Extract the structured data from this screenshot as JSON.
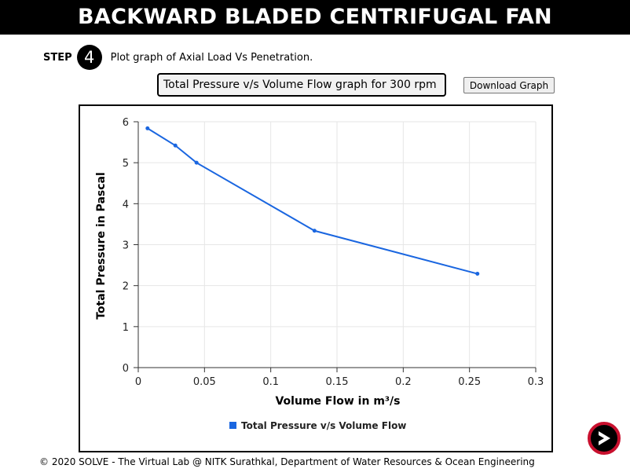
{
  "header": {
    "title": "BACKWARD BLADED CENTRIFUGAL FAN"
  },
  "step": {
    "label": "STEP",
    "number": "4",
    "instruction": "Plot graph of Axial Load Vs Penetration."
  },
  "graph_select": {
    "value": "Total Pressure v/s Volume Flow graph for 300 rpm"
  },
  "download": {
    "label": "Download Graph"
  },
  "footer": {
    "text": "© 2020 SOLVE - The Virtual Lab @ NITK Surathkal, Department of Water Resources & Ocean Engineering"
  },
  "colors": {
    "series": "#1a66e0",
    "legend_marker": "#1a66e0",
    "next_ring": "#c8102e"
  },
  "icons": {
    "next": "chevron-right-icon"
  },
  "chart_data": {
    "type": "line",
    "title": "",
    "xlabel": "Volume Flow in m³/s",
    "ylabel": "Total Pressure in Pascal",
    "xlim": [
      0,
      0.3
    ],
    "ylim": [
      0,
      6
    ],
    "xticks": [
      "0",
      "0.05",
      "0.1",
      "0.15",
      "0.2",
      "0.25",
      "0.3"
    ],
    "xtick_values": [
      0,
      0.05,
      0.1,
      0.15,
      0.2,
      0.25,
      0.3
    ],
    "yticks": [
      "0",
      "1",
      "2",
      "3",
      "4",
      "5",
      "6"
    ],
    "ytick_values": [
      0,
      1,
      2,
      3,
      4,
      5,
      6
    ],
    "grid": true,
    "legend_position": "bottom-center",
    "series": [
      {
        "name": "Total Pressure v/s Volume Flow",
        "color": "#1a66e0",
        "points": [
          {
            "x": 0.007,
            "y": 5.84
          },
          {
            "x": 0.028,
            "y": 5.42
          },
          {
            "x": 0.044,
            "y": 5.0
          },
          {
            "x": 0.133,
            "y": 3.34
          },
          {
            "x": 0.256,
            "y": 2.29
          }
        ]
      }
    ]
  }
}
